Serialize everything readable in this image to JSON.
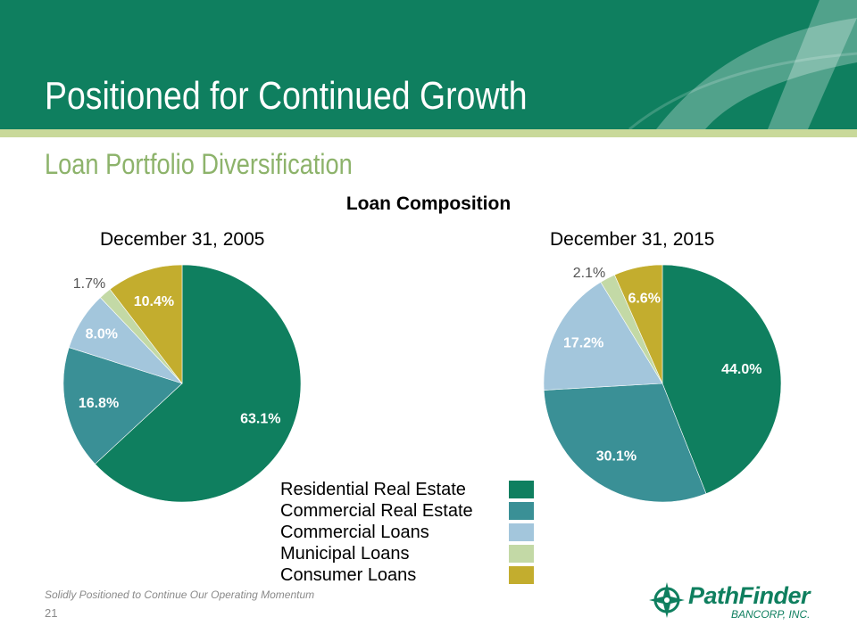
{
  "slide": {
    "title": "Positioned for Continued Growth",
    "subtitle": "Loan Portfolio Diversification",
    "footer": "Solidly Positioned to Continue Our Operating Momentum",
    "page_number": "21"
  },
  "logo": {
    "name": "PathFinder",
    "sub": "BANCORP, INC."
  },
  "colors": {
    "header": "#0f7f5f",
    "accent_stripe": "#c9d99a",
    "subtitle": "#8db36b"
  },
  "chart_data": {
    "type": "pie",
    "title": "Loan Composition",
    "legend_position": "bottom-center",
    "categories": [
      "Residential Real Estate",
      "Commercial Real Estate",
      "Commercial Loans",
      "Municipal Loans",
      "Consumer Loans"
    ],
    "colors": [
      "#0f7f5f",
      "#3a9096",
      "#a3c6dc",
      "#c3d9a6",
      "#c3ad2e"
    ],
    "charts": [
      {
        "label": "December 31, 2005",
        "values": [
          63.1,
          16.8,
          8.0,
          1.7,
          10.4
        ],
        "value_labels": [
          "63.1%",
          "16.8%",
          "8.0%",
          "1.7%",
          "10.4%"
        ]
      },
      {
        "label": "December 31, 2015",
        "values": [
          44.0,
          30.1,
          17.2,
          2.1,
          6.6
        ],
        "value_labels": [
          "44.0%",
          "30.1%",
          "17.2%",
          "2.1%",
          "6.6%"
        ]
      }
    ]
  }
}
